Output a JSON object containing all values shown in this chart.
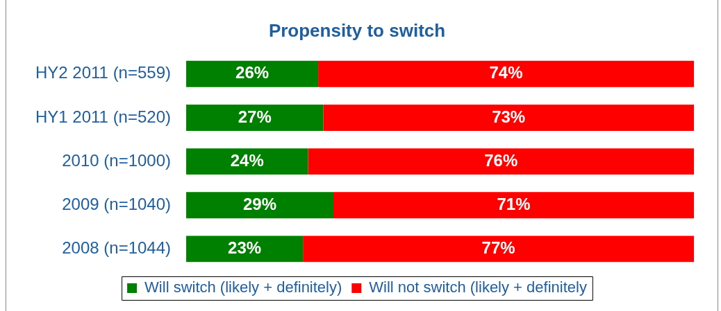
{
  "chart_data": {
    "type": "bar",
    "orientation": "horizontal",
    "stacked": true,
    "title": "Propensity to switch",
    "categories": [
      "HY2 2011 (n=559)",
      "HY1 2011 (n=520)",
      "2010 (n=1000)",
      "2009 (n=1040)",
      "2008 (n=1044)"
    ],
    "series": [
      {
        "name": "Will switch (likely + definitely)",
        "color": "#008000",
        "values": [
          26,
          27,
          24,
          29,
          23
        ],
        "value_labels": [
          "26%",
          "27%",
          "24%",
          "29%",
          "23%"
        ]
      },
      {
        "name": "Will not switch (likely + definitely",
        "color": "#ff0000",
        "values": [
          74,
          73,
          76,
          71,
          77
        ],
        "value_labels": [
          "74%",
          "73%",
          "76%",
          "71%",
          "77%"
        ]
      }
    ],
    "grid": false,
    "legend": "bottom",
    "tick_labels": "y"
  }
}
